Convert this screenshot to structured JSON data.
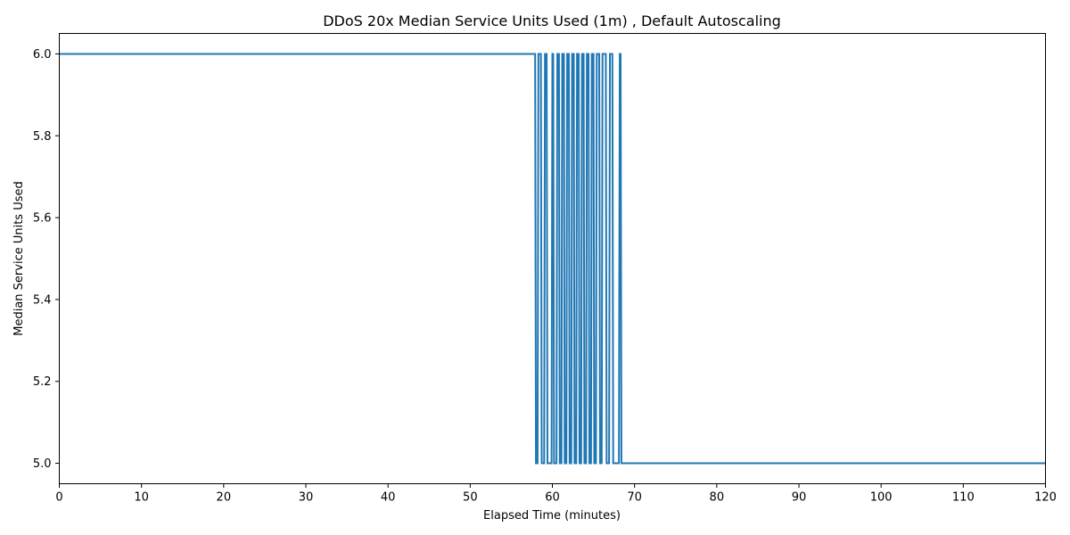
{
  "chart_data": {
    "type": "line",
    "title": "DDoS 20x Median Service Units Used (1m) , Default Autoscaling",
    "xlabel": "Elapsed Time (minutes)",
    "ylabel": "Median Service Units Used",
    "xlim": [
      0,
      120
    ],
    "ylim": [
      4.95,
      6.05
    ],
    "xticks": [
      0,
      10,
      20,
      30,
      40,
      50,
      60,
      70,
      80,
      90,
      100,
      110,
      120
    ],
    "yticks": [
      5.0,
      5.2,
      5.4,
      5.6,
      5.8,
      6.0
    ],
    "ytick_labels": [
      "5.0",
      "5.2",
      "5.4",
      "5.6",
      "5.8",
      "6.0"
    ],
    "grid": false,
    "series": [
      {
        "color": "#1f77b4",
        "x": [
          0,
          57.9,
          58.0,
          58.2,
          58.3,
          58.6,
          58.7,
          59.0,
          59.1,
          59.3,
          59.4,
          59.9,
          60.0,
          60.1,
          60.2,
          60.5,
          60.6,
          60.8,
          60.9,
          61.1,
          61.2,
          61.4,
          61.5,
          61.7,
          61.8,
          62.0,
          62.1,
          62.3,
          62.4,
          62.6,
          62.7,
          62.9,
          63.0,
          63.2,
          63.3,
          63.5,
          63.6,
          63.8,
          63.9,
          64.1,
          64.2,
          64.4,
          64.5,
          64.7,
          64.8,
          65.0,
          65.1,
          65.3,
          65.4,
          65.7,
          65.8,
          66.0,
          66.1,
          66.5,
          66.6,
          66.9,
          67.0,
          67.3,
          67.4,
          68.1,
          68.2,
          68.3,
          68.4,
          120
        ],
        "y": [
          6,
          6,
          5,
          5,
          6,
          6,
          5,
          5,
          6,
          6,
          5,
          5,
          6,
          6,
          5,
          5,
          6,
          6,
          5,
          5,
          6,
          6,
          5,
          5,
          6,
          6,
          5,
          5,
          6,
          6,
          5,
          5,
          6,
          6,
          5,
          5,
          6,
          6,
          5,
          5,
          6,
          6,
          5,
          5,
          6,
          6,
          5,
          5,
          6,
          6,
          5,
          5,
          6,
          6,
          5,
          5,
          6,
          6,
          5,
          5,
          6,
          6,
          5,
          5
        ]
      }
    ]
  }
}
